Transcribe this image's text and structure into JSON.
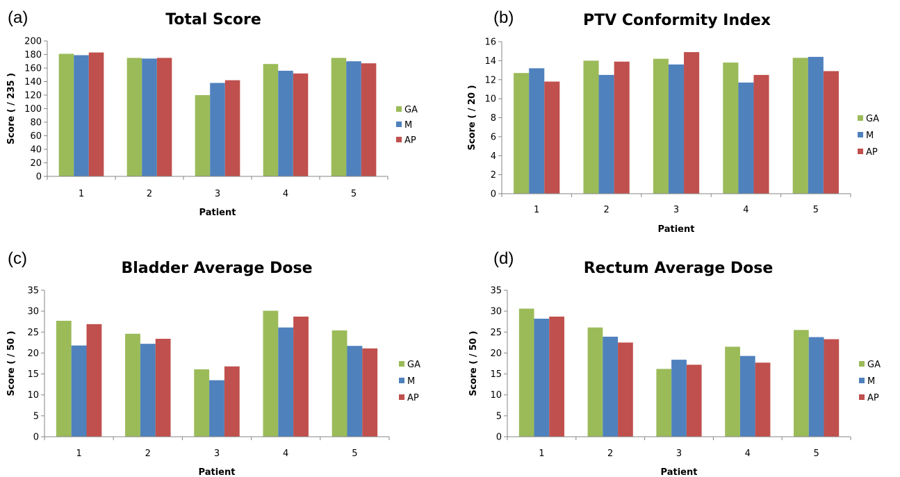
{
  "colors": {
    "GA": "#9BBB59",
    "M": "#4F81BD",
    "AP": "#C0504D",
    "axis": "#868686"
  },
  "chart_data": [
    {
      "panel": "(a)",
      "type": "bar",
      "title": "Total Score",
      "xlabel": "Patient",
      "ylabel": "Score ( / 235 )",
      "categories": [
        "1",
        "2",
        "3",
        "4",
        "5"
      ],
      "yticks": [
        "0",
        "20",
        "40",
        "60",
        "80",
        "100",
        "120",
        "140",
        "160",
        "180",
        "200"
      ],
      "ylim": [
        0,
        200
      ],
      "grid": false,
      "legend": "right",
      "series": [
        {
          "name": "GA",
          "values": [
            181,
            175,
            120,
            166,
            175
          ]
        },
        {
          "name": "M",
          "values": [
            179,
            174,
            138,
            156,
            170
          ]
        },
        {
          "name": "AP",
          "values": [
            183,
            175,
            142,
            152,
            167
          ]
        }
      ]
    },
    {
      "panel": "(b)",
      "type": "bar",
      "title": "PTV Conformity Index",
      "xlabel": "Patient",
      "ylabel": "Score ( / 20 )",
      "categories": [
        "1",
        "2",
        "3",
        "4",
        "5"
      ],
      "yticks": [
        "0",
        "2",
        "4",
        "6",
        "8",
        "10",
        "12",
        "14",
        "16"
      ],
      "ylim": [
        0,
        16
      ],
      "grid": false,
      "legend": "right",
      "series": [
        {
          "name": "GA",
          "values": [
            12.7,
            14.0,
            14.2,
            13.8,
            14.3
          ]
        },
        {
          "name": "M",
          "values": [
            13.2,
            12.5,
            13.6,
            11.7,
            14.4
          ]
        },
        {
          "name": "AP",
          "values": [
            11.8,
            13.9,
            14.9,
            12.5,
            12.9
          ]
        }
      ]
    },
    {
      "panel": "(c)",
      "type": "bar",
      "title": "Bladder Average Dose",
      "xlabel": "Patient",
      "ylabel": "Score ( / 50 )",
      "categories": [
        "1",
        "2",
        "3",
        "4",
        "5"
      ],
      "yticks": [
        "0",
        "5",
        "10",
        "15",
        "20",
        "25",
        "30",
        "35"
      ],
      "ylim": [
        0,
        35
      ],
      "grid": false,
      "legend": "right",
      "series": [
        {
          "name": "GA",
          "values": [
            27.7,
            24.6,
            16.1,
            30.1,
            25.4
          ]
        },
        {
          "name": "M",
          "values": [
            21.8,
            22.2,
            13.5,
            26.1,
            21.7
          ]
        },
        {
          "name": "AP",
          "values": [
            26.9,
            23.4,
            16.8,
            28.7,
            21.1
          ]
        }
      ]
    },
    {
      "panel": "(d)",
      "type": "bar",
      "title": "Rectum Average Dose",
      "xlabel": "Patient",
      "ylabel": "Score ( / 50 )",
      "categories": [
        "1",
        "2",
        "3",
        "4",
        "5"
      ],
      "yticks": [
        "0",
        "5",
        "10",
        "15",
        "20",
        "25",
        "30",
        "35"
      ],
      "ylim": [
        0,
        35
      ],
      "grid": false,
      "legend": "right",
      "series": [
        {
          "name": "GA",
          "values": [
            30.6,
            26.1,
            16.2,
            21.5,
            25.5
          ]
        },
        {
          "name": "M",
          "values": [
            28.2,
            23.9,
            18.4,
            19.3,
            23.8
          ]
        },
        {
          "name": "AP",
          "values": [
            28.7,
            22.5,
            17.2,
            17.7,
            23.3
          ]
        }
      ]
    }
  ]
}
